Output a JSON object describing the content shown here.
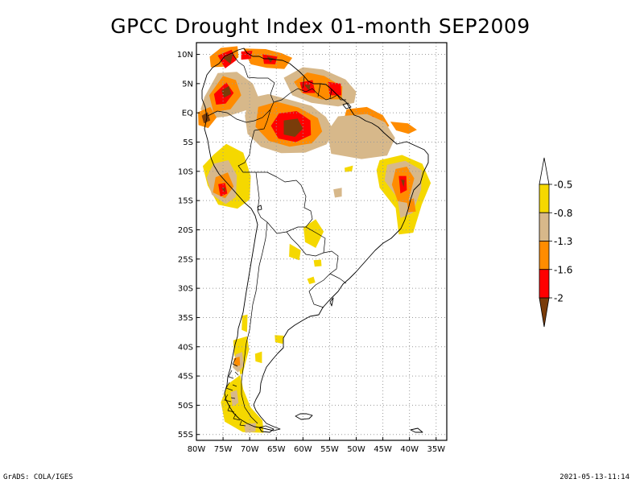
{
  "title": "GPCC Drought Index 01-month SEP2009",
  "footer_left": "GrADS: COLA/IGES",
  "footer_right": "2021-05-13-11:14",
  "map": {
    "lon_min": -80,
    "lon_max": -33,
    "lat_min": -56,
    "lat_max": 12,
    "lat_ticks": [
      {
        "value": 10,
        "label": "10N"
      },
      {
        "value": 5,
        "label": "5N"
      },
      {
        "value": 0,
        "label": "EQ"
      },
      {
        "value": -5,
        "label": "5S"
      },
      {
        "value": -10,
        "label": "10S"
      },
      {
        "value": -15,
        "label": "15S"
      },
      {
        "value": -20,
        "label": "20S"
      },
      {
        "value": -25,
        "label": "25S"
      },
      {
        "value": -30,
        "label": "30S"
      },
      {
        "value": -35,
        "label": "35S"
      },
      {
        "value": -40,
        "label": "40S"
      },
      {
        "value": -45,
        "label": "45S"
      },
      {
        "value": -50,
        "label": "50S"
      },
      {
        "value": -55,
        "label": "55S"
      }
    ],
    "lon_ticks": [
      {
        "value": -80,
        "label": "80W"
      },
      {
        "value": -75,
        "label": "75W"
      },
      {
        "value": -70,
        "label": "70W"
      },
      {
        "value": -65,
        "label": "65W"
      },
      {
        "value": -60,
        "label": "60W"
      },
      {
        "value": -55,
        "label": "55W"
      },
      {
        "value": -50,
        "label": "50W"
      },
      {
        "value": -45,
        "label": "45W"
      },
      {
        "value": -40,
        "label": "40W"
      },
      {
        "value": -35,
        "label": "35W"
      }
    ]
  },
  "colorbar": {
    "colors": [
      "#f5d800",
      "#d7b88a",
      "#ff8c00",
      "#ff0000",
      "#7a3c0a"
    ],
    "labels": [
      "-0.5",
      "-0.8",
      "-1.3",
      "-1.6",
      "-2"
    ]
  },
  "regions": [
    {
      "level": 2,
      "points": [
        [
          -77.5,
          9.6
        ],
        [
          -75.4,
          11.1
        ],
        [
          -72.3,
          11.4
        ],
        [
          -72.1,
          9.5
        ],
        [
          -74.5,
          7.9
        ],
        [
          -77.3,
          7.8
        ]
      ]
    },
    {
      "level": 3,
      "points": [
        [
          -76.0,
          9.8
        ],
        [
          -73.4,
          10.8
        ],
        [
          -72.5,
          9.0
        ],
        [
          -74.6,
          7.6
        ]
      ]
    },
    {
      "level": 4,
      "points": [
        [
          -75.0,
          9.4
        ],
        [
          -73.1,
          10.2
        ],
        [
          -73.6,
          8.4
        ]
      ]
    },
    {
      "level": 2,
      "points": [
        [
          -71.2,
          11.0
        ],
        [
          -67.0,
          10.9
        ],
        [
          -64.0,
          10.2
        ],
        [
          -62.0,
          9.4
        ],
        [
          -63.5,
          7.5
        ],
        [
          -66.8,
          7.7
        ],
        [
          -69.8,
          8.3
        ]
      ]
    },
    {
      "level": 3,
      "points": [
        [
          -67.6,
          10.0
        ],
        [
          -64.8,
          9.6
        ],
        [
          -65.2,
          8.3
        ],
        [
          -67.3,
          8.4
        ]
      ]
    },
    {
      "level": 4,
      "points": [
        [
          -66.8,
          9.7
        ],
        [
          -65.5,
          9.3
        ],
        [
          -66.1,
          8.6
        ]
      ]
    },
    {
      "level": 3,
      "points": [
        [
          -71.6,
          10.5
        ],
        [
          -69.5,
          10.6
        ],
        [
          -69.8,
          9.2
        ],
        [
          -71.6,
          9.1
        ]
      ]
    },
    {
      "level": 1,
      "points": [
        [
          -78.5,
          2.7
        ],
        [
          -76.0,
          6.8
        ],
        [
          -72.4,
          7.0
        ],
        [
          -69.4,
          5.0
        ],
        [
          -68.2,
          2.3
        ],
        [
          -70.1,
          0.6
        ],
        [
          -74.2,
          -0.6
        ],
        [
          -77.8,
          -1.0
        ],
        [
          -79.2,
          0.6
        ]
      ]
    },
    {
      "level": 2,
      "points": [
        [
          -77.6,
          3.0
        ],
        [
          -75.0,
          6.3
        ],
        [
          -72.6,
          5.6
        ],
        [
          -71.6,
          3.0
        ],
        [
          -73.6,
          0.6
        ],
        [
          -76.8,
          0.1
        ]
      ]
    },
    {
      "level": 3,
      "points": [
        [
          -76.7,
          3.2
        ],
        [
          -74.4,
          5.2
        ],
        [
          -73.0,
          3.4
        ],
        [
          -74.5,
          1.6
        ],
        [
          -76.3,
          1.4
        ]
      ]
    },
    {
      "level": 4,
      "points": [
        [
          -75.3,
          3.8
        ],
        [
          -73.9,
          4.6
        ],
        [
          -73.5,
          3.2
        ],
        [
          -74.8,
          2.6
        ]
      ]
    },
    {
      "level": 2,
      "points": [
        [
          -79.7,
          0.1
        ],
        [
          -77.4,
          1.0
        ],
        [
          -76.2,
          -0.8
        ],
        [
          -77.8,
          -2.6
        ],
        [
          -79.6,
          -2.1
        ]
      ]
    },
    {
      "level": 4,
      "points": [
        [
          -79.0,
          -0.5
        ],
        [
          -77.9,
          0.1
        ],
        [
          -77.4,
          -1.3
        ],
        [
          -78.6,
          -1.8
        ]
      ]
    },
    {
      "level": 1,
      "points": [
        [
          -70.1,
          2.5
        ],
        [
          -66.5,
          3.2
        ],
        [
          -62.0,
          2.1
        ],
        [
          -58.4,
          1.2
        ],
        [
          -55.7,
          -0.7
        ],
        [
          -54.1,
          -3.2
        ],
        [
          -55.6,
          -5.4
        ],
        [
          -59.6,
          -6.8
        ],
        [
          -64.1,
          -6.9
        ],
        [
          -67.9,
          -5.8
        ],
        [
          -70.4,
          -3.6
        ],
        [
          -70.9,
          -0.5
        ]
      ]
    },
    {
      "level": 2,
      "points": [
        [
          -68.4,
          1.0
        ],
        [
          -64.9,
          1.9
        ],
        [
          -60.8,
          0.9
        ],
        [
          -57.2,
          -0.9
        ],
        [
          -56.4,
          -3.2
        ],
        [
          -58.3,
          -5.2
        ],
        [
          -62.5,
          -5.8
        ],
        [
          -66.4,
          -4.8
        ],
        [
          -68.9,
          -2.4
        ]
      ]
    },
    {
      "level": 3,
      "points": [
        [
          -64.5,
          -0.1
        ],
        [
          -61.2,
          0.3
        ],
        [
          -58.6,
          -1.3
        ],
        [
          -58.5,
          -3.8
        ],
        [
          -61.3,
          -5.0
        ],
        [
          -64.6,
          -4.4
        ],
        [
          -66.0,
          -2.2
        ]
      ]
    },
    {
      "level": 4,
      "points": [
        [
          -63.6,
          -1.3
        ],
        [
          -61.0,
          -1.0
        ],
        [
          -60.0,
          -2.7
        ],
        [
          -61.5,
          -4.1
        ],
        [
          -63.6,
          -3.7
        ]
      ]
    },
    {
      "level": 1,
      "points": [
        [
          -63.6,
          6.0
        ],
        [
          -60.0,
          7.8
        ],
        [
          -56.2,
          7.4
        ],
        [
          -52.0,
          5.7
        ],
        [
          -50.0,
          3.6
        ],
        [
          -50.4,
          1.7
        ],
        [
          -53.4,
          1.1
        ],
        [
          -58.4,
          1.7
        ],
        [
          -62.0,
          3.0
        ]
      ]
    },
    {
      "level": 2,
      "points": [
        [
          -61.7,
          5.3
        ],
        [
          -59.2,
          6.9
        ],
        [
          -56.0,
          6.3
        ],
        [
          -52.6,
          4.5
        ],
        [
          -52.7,
          2.3
        ],
        [
          -56.5,
          2.3
        ],
        [
          -60.2,
          3.4
        ]
      ]
    },
    {
      "level": 3,
      "points": [
        [
          -60.6,
          5.2
        ],
        [
          -58.2,
          5.6
        ],
        [
          -57.7,
          3.4
        ],
        [
          -60.0,
          3.4
        ]
      ]
    },
    {
      "level": 4,
      "points": [
        [
          -59.8,
          4.8
        ],
        [
          -58.6,
          4.8
        ],
        [
          -58.8,
          3.8
        ]
      ]
    },
    {
      "level": 3,
      "points": [
        [
          -55.3,
          5.3
        ],
        [
          -52.9,
          5.0
        ],
        [
          -52.8,
          3.0
        ],
        [
          -55.0,
          3.0
        ]
      ]
    },
    {
      "level": 2,
      "points": [
        [
          -51.8,
          0.6
        ],
        [
          -48.0,
          1.0
        ],
        [
          -45.0,
          -0.4
        ],
        [
          -43.8,
          -2.2
        ],
        [
          -46.3,
          -4.2
        ],
        [
          -49.8,
          -4.0
        ],
        [
          -52.6,
          -2.0
        ]
      ]
    },
    {
      "level": 3,
      "points": [
        [
          -49.6,
          -0.6
        ],
        [
          -46.8,
          -0.6
        ],
        [
          -46.4,
          -2.4
        ],
        [
          -49.2,
          -2.7
        ]
      ]
    },
    {
      "level": 4,
      "points": [
        [
          -49.0,
          -1.1
        ],
        [
          -47.5,
          -1.2
        ],
        [
          -47.8,
          -2.1
        ]
      ]
    },
    {
      "level": 1,
      "points": [
        [
          -53.4,
          -0.6
        ],
        [
          -48.0,
          -0.2
        ],
        [
          -44.6,
          -1.6
        ],
        [
          -42.7,
          -4.3
        ],
        [
          -44.2,
          -7.3
        ],
        [
          -49.0,
          -7.9
        ],
        [
          -54.7,
          -7.0
        ],
        [
          -55.4,
          -3.2
        ]
      ]
    },
    {
      "level": 2,
      "points": [
        [
          -43.6,
          -1.5
        ],
        [
          -40.3,
          -1.8
        ],
        [
          -38.6,
          -2.9
        ],
        [
          -40.2,
          -3.6
        ],
        [
          -42.5,
          -3.0
        ]
      ]
    },
    {
      "level": 0,
      "points": [
        [
          -76.7,
          -7.1
        ],
        [
          -74.4,
          -5.3
        ],
        [
          -71.2,
          -6.8
        ],
        [
          -69.8,
          -10.8
        ],
        [
          -70.0,
          -14.8
        ],
        [
          -72.3,
          -16.4
        ],
        [
          -75.9,
          -15.7
        ],
        [
          -77.9,
          -12.4
        ],
        [
          -78.8,
          -9.1
        ]
      ]
    },
    {
      "level": 1,
      "points": [
        [
          -76.8,
          -8.7
        ],
        [
          -74.0,
          -8.1
        ],
        [
          -72.4,
          -10.7
        ],
        [
          -72.6,
          -14.4
        ],
        [
          -74.5,
          -15.6
        ],
        [
          -77.1,
          -14.0
        ],
        [
          -78.1,
          -11.1
        ]
      ]
    },
    {
      "level": 2,
      "points": [
        [
          -76.4,
          -11.0
        ],
        [
          -74.1,
          -10.2
        ],
        [
          -73.0,
          -12.6
        ],
        [
          -74.6,
          -14.6
        ],
        [
          -76.9,
          -13.6
        ]
      ]
    },
    {
      "level": 3,
      "points": [
        [
          -75.9,
          -12.2
        ],
        [
          -74.6,
          -12.0
        ],
        [
          -74.2,
          -13.8
        ],
        [
          -75.5,
          -14.3
        ]
      ]
    },
    {
      "level": 4,
      "points": [
        [
          -75.3,
          -12.8
        ],
        [
          -74.6,
          -12.8
        ],
        [
          -74.6,
          -13.6
        ]
      ]
    },
    {
      "level": 0,
      "points": [
        [
          -45.6,
          -8.1
        ],
        [
          -41.4,
          -7.2
        ],
        [
          -37.6,
          -8.7
        ],
        [
          -36.0,
          -12.0
        ],
        [
          -37.7,
          -15.7
        ],
        [
          -39.3,
          -20.5
        ],
        [
          -42.0,
          -20.8
        ],
        [
          -42.6,
          -16.3
        ],
        [
          -45.6,
          -12.8
        ],
        [
          -46.2,
          -9.8
        ]
      ]
    },
    {
      "level": 1,
      "points": [
        [
          -44.2,
          -8.9
        ],
        [
          -40.8,
          -8.2
        ],
        [
          -37.7,
          -9.8
        ],
        [
          -37.8,
          -13.1
        ],
        [
          -39.4,
          -17.1
        ],
        [
          -41.7,
          -18.0
        ],
        [
          -42.3,
          -14.5
        ],
        [
          -44.7,
          -11.6
        ]
      ]
    },
    {
      "level": 2,
      "points": [
        [
          -42.6,
          -9.6
        ],
        [
          -40.5,
          -9.2
        ],
        [
          -39.1,
          -11.2
        ],
        [
          -40.3,
          -15.4
        ],
        [
          -42.2,
          -15.1
        ],
        [
          -43.3,
          -12.3
        ]
      ]
    },
    {
      "level": 3,
      "points": [
        [
          -42.0,
          -10.8
        ],
        [
          -40.6,
          -10.8
        ],
        [
          -40.5,
          -13.2
        ],
        [
          -41.7,
          -13.8
        ]
      ]
    },
    {
      "level": 4,
      "points": [
        [
          -41.6,
          -11.4
        ],
        [
          -40.9,
          -11.5
        ],
        [
          -41.1,
          -12.7
        ]
      ]
    },
    {
      "level": 2,
      "points": [
        [
          -40.5,
          -15.1
        ],
        [
          -39.2,
          -14.6
        ],
        [
          -38.8,
          -16.9
        ],
        [
          -40.2,
          -17.0
        ]
      ]
    },
    {
      "level": 0,
      "points": [
        [
          -59.9,
          -19.6
        ],
        [
          -57.6,
          -18.2
        ],
        [
          -56.1,
          -20.3
        ],
        [
          -57.6,
          -23.1
        ],
        [
          -59.6,
          -22.1
        ]
      ]
    },
    {
      "level": 0,
      "points": [
        [
          -62.5,
          -22.4
        ],
        [
          -60.4,
          -23.5
        ],
        [
          -60.7,
          -25.2
        ],
        [
          -62.6,
          -24.6
        ]
      ]
    },
    {
      "level": 0,
      "points": [
        [
          -58.0,
          -25.2
        ],
        [
          -56.6,
          -25.1
        ],
        [
          -56.5,
          -26.2
        ],
        [
          -57.8,
          -26.3
        ]
      ]
    },
    {
      "level": 0,
      "points": [
        [
          -59.2,
          -28.4
        ],
        [
          -58.0,
          -28.0
        ],
        [
          -57.7,
          -29.0
        ],
        [
          -58.8,
          -29.3
        ]
      ]
    },
    {
      "level": 0,
      "points": [
        [
          -52.2,
          -9.4
        ],
        [
          -50.6,
          -9.0
        ],
        [
          -50.8,
          -10.0
        ],
        [
          -52.1,
          -10.1
        ]
      ]
    },
    {
      "level": 1,
      "points": [
        [
          -54.3,
          -13.1
        ],
        [
          -52.7,
          -12.8
        ],
        [
          -52.7,
          -14.3
        ],
        [
          -54.0,
          -14.5
        ]
      ]
    },
    {
      "level": 0,
      "points": [
        [
          -73.1,
          -38.9
        ],
        [
          -70.5,
          -38.2
        ],
        [
          -70.1,
          -40.4
        ],
        [
          -71.3,
          -44.5
        ],
        [
          -74.1,
          -46.4
        ],
        [
          -75.4,
          -49.5
        ],
        [
          -74.7,
          -52.8
        ],
        [
          -71.3,
          -54.6
        ],
        [
          -67.4,
          -54.7
        ],
        [
          -67.6,
          -52.6
        ],
        [
          -69.8,
          -50.4
        ],
        [
          -71.2,
          -47.3
        ],
        [
          -72.0,
          -43.7
        ],
        [
          -72.9,
          -41.4
        ]
      ]
    },
    {
      "level": 1,
      "points": [
        [
          -72.6,
          -41.3
        ],
        [
          -71.4,
          -40.9
        ],
        [
          -71.1,
          -43.2
        ],
        [
          -72.2,
          -44.4
        ],
        [
          -73.2,
          -43.5
        ]
      ]
    },
    {
      "level": 2,
      "points": [
        [
          -73.0,
          -42.0
        ],
        [
          -71.9,
          -41.7
        ],
        [
          -71.8,
          -43.2
        ],
        [
          -72.8,
          -43.3
        ]
      ]
    },
    {
      "level": 1,
      "points": [
        [
          -73.6,
          -47.8
        ],
        [
          -72.4,
          -47.4
        ],
        [
          -72.1,
          -49.6
        ],
        [
          -73.2,
          -50.2
        ]
      ]
    },
    {
      "level": 1,
      "points": [
        [
          -71.1,
          -53.3
        ],
        [
          -68.8,
          -53.0
        ],
        [
          -68.9,
          -54.5
        ],
        [
          -70.8,
          -54.7
        ]
      ]
    },
    {
      "level": 0,
      "points": [
        [
          -69.0,
          -41.2
        ],
        [
          -67.7,
          -40.8
        ],
        [
          -67.7,
          -42.8
        ],
        [
          -68.9,
          -42.5
        ]
      ]
    },
    {
      "level": 0,
      "points": [
        [
          -71.4,
          -34.7
        ],
        [
          -70.4,
          -34.5
        ],
        [
          -70.5,
          -37.5
        ],
        [
          -71.5,
          -37.1
        ]
      ]
    },
    {
      "level": 0,
      "points": [
        [
          -65.3,
          -38.0
        ],
        [
          -63.6,
          -38.1
        ],
        [
          -63.8,
          -39.5
        ],
        [
          -65.2,
          -39.2
        ]
      ]
    }
  ]
}
